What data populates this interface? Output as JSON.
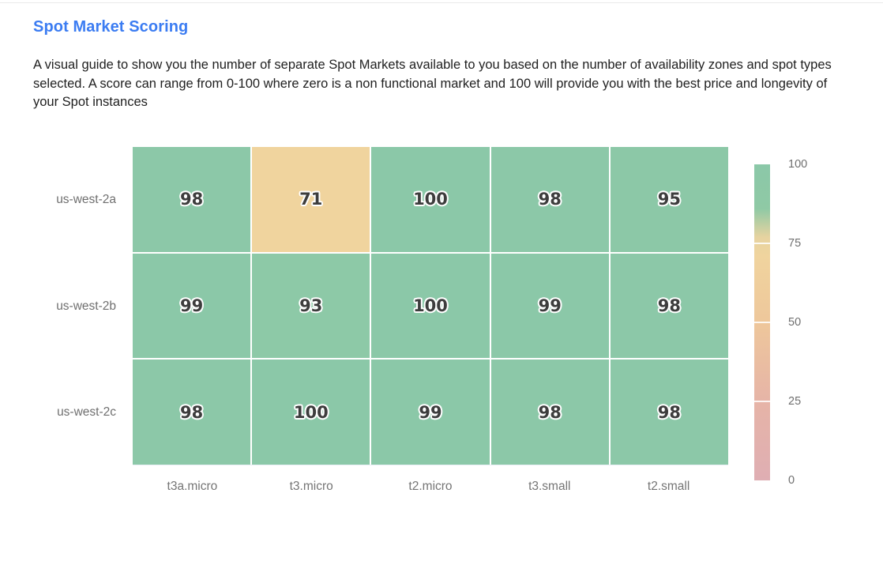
{
  "page": {
    "title": "Spot Market Scoring",
    "description": "A visual guide to show you the number of separate Spot Markets available to you based on the number of availability zones and spot types selected. A score can range from 0-100 where zero is a non functional market and 100 will provide you with the best price and longevity of your Spot instances"
  },
  "colors": {
    "accent_blue": "#3b7cf2",
    "cell_value_text": "#3d3d3d",
    "axis_label_gray": "#6f6f6f",
    "divider_gray": "#e9e9e9",
    "background": "#ffffff",
    "green_high": "#8bc8a8",
    "tan_mid": "#f0d49e",
    "pink_low": "#dfaeb3"
  },
  "chart_data": {
    "type": "heatmap",
    "title": "Spot Market Scoring",
    "x_categories": [
      "t3a.micro",
      "t3.micro",
      "t2.micro",
      "t3.small",
      "t2.small"
    ],
    "y_categories": [
      "us-west-2a",
      "us-west-2b",
      "us-west-2c"
    ],
    "z": [
      [
        98,
        71,
        100,
        98,
        95
      ],
      [
        99,
        93,
        100,
        99,
        98
      ],
      [
        98,
        100,
        99,
        98,
        98
      ]
    ],
    "zmin": 0,
    "zmax": 100,
    "grid": false,
    "legend_position": "right",
    "colorbar_ticks": [
      100,
      75,
      50,
      25,
      0
    ],
    "colorscale": [
      [
        0,
        "#dfaeb3"
      ],
      [
        25,
        "#e6b4a7"
      ],
      [
        50,
        "#eec79b"
      ],
      [
        71,
        "#f0d49e"
      ],
      [
        77,
        "#e6d3a0"
      ],
      [
        86,
        "#8fc9a5"
      ],
      [
        100,
        "#8bc8a8"
      ]
    ]
  }
}
